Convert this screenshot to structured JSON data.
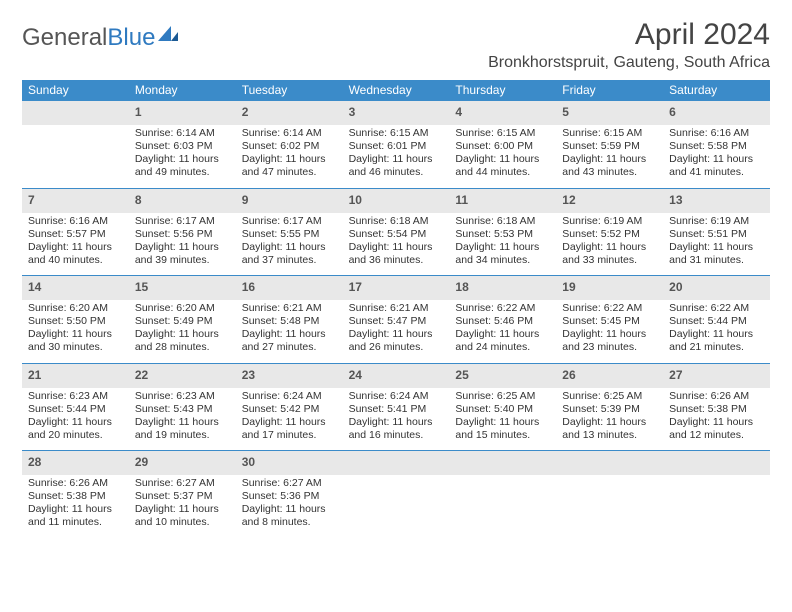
{
  "brand": {
    "part1": "General",
    "part2": "Blue"
  },
  "title": "April 2024",
  "location": "Bronkhorstspruit, Gauteng, South Africa",
  "colors": {
    "header_bg": "#3b8bc9",
    "header_text": "#ffffff",
    "daynum_bg": "#e8e8e8",
    "text": "#333333",
    "logo_gray": "#555555",
    "logo_blue": "#2f7ac0"
  },
  "weekdays": [
    "Sunday",
    "Monday",
    "Tuesday",
    "Wednesday",
    "Thursday",
    "Friday",
    "Saturday"
  ],
  "weeks": [
    [
      {
        "n": "",
        "sr": "",
        "ss": "",
        "dl": ""
      },
      {
        "n": "1",
        "sr": "6:14 AM",
        "ss": "6:03 PM",
        "dl": "11 hours and 49 minutes."
      },
      {
        "n": "2",
        "sr": "6:14 AM",
        "ss": "6:02 PM",
        "dl": "11 hours and 47 minutes."
      },
      {
        "n": "3",
        "sr": "6:15 AM",
        "ss": "6:01 PM",
        "dl": "11 hours and 46 minutes."
      },
      {
        "n": "4",
        "sr": "6:15 AM",
        "ss": "6:00 PM",
        "dl": "11 hours and 44 minutes."
      },
      {
        "n": "5",
        "sr": "6:15 AM",
        "ss": "5:59 PM",
        "dl": "11 hours and 43 minutes."
      },
      {
        "n": "6",
        "sr": "6:16 AM",
        "ss": "5:58 PM",
        "dl": "11 hours and 41 minutes."
      }
    ],
    [
      {
        "n": "7",
        "sr": "6:16 AM",
        "ss": "5:57 PM",
        "dl": "11 hours and 40 minutes."
      },
      {
        "n": "8",
        "sr": "6:17 AM",
        "ss": "5:56 PM",
        "dl": "11 hours and 39 minutes."
      },
      {
        "n": "9",
        "sr": "6:17 AM",
        "ss": "5:55 PM",
        "dl": "11 hours and 37 minutes."
      },
      {
        "n": "10",
        "sr": "6:18 AM",
        "ss": "5:54 PM",
        "dl": "11 hours and 36 minutes."
      },
      {
        "n": "11",
        "sr": "6:18 AM",
        "ss": "5:53 PM",
        "dl": "11 hours and 34 minutes."
      },
      {
        "n": "12",
        "sr": "6:19 AM",
        "ss": "5:52 PM",
        "dl": "11 hours and 33 minutes."
      },
      {
        "n": "13",
        "sr": "6:19 AM",
        "ss": "5:51 PM",
        "dl": "11 hours and 31 minutes."
      }
    ],
    [
      {
        "n": "14",
        "sr": "6:20 AM",
        "ss": "5:50 PM",
        "dl": "11 hours and 30 minutes."
      },
      {
        "n": "15",
        "sr": "6:20 AM",
        "ss": "5:49 PM",
        "dl": "11 hours and 28 minutes."
      },
      {
        "n": "16",
        "sr": "6:21 AM",
        "ss": "5:48 PM",
        "dl": "11 hours and 27 minutes."
      },
      {
        "n": "17",
        "sr": "6:21 AM",
        "ss": "5:47 PM",
        "dl": "11 hours and 26 minutes."
      },
      {
        "n": "18",
        "sr": "6:22 AM",
        "ss": "5:46 PM",
        "dl": "11 hours and 24 minutes."
      },
      {
        "n": "19",
        "sr": "6:22 AM",
        "ss": "5:45 PM",
        "dl": "11 hours and 23 minutes."
      },
      {
        "n": "20",
        "sr": "6:22 AM",
        "ss": "5:44 PM",
        "dl": "11 hours and 21 minutes."
      }
    ],
    [
      {
        "n": "21",
        "sr": "6:23 AM",
        "ss": "5:44 PM",
        "dl": "11 hours and 20 minutes."
      },
      {
        "n": "22",
        "sr": "6:23 AM",
        "ss": "5:43 PM",
        "dl": "11 hours and 19 minutes."
      },
      {
        "n": "23",
        "sr": "6:24 AM",
        "ss": "5:42 PM",
        "dl": "11 hours and 17 minutes."
      },
      {
        "n": "24",
        "sr": "6:24 AM",
        "ss": "5:41 PM",
        "dl": "11 hours and 16 minutes."
      },
      {
        "n": "25",
        "sr": "6:25 AM",
        "ss": "5:40 PM",
        "dl": "11 hours and 15 minutes."
      },
      {
        "n": "26",
        "sr": "6:25 AM",
        "ss": "5:39 PM",
        "dl": "11 hours and 13 minutes."
      },
      {
        "n": "27",
        "sr": "6:26 AM",
        "ss": "5:38 PM",
        "dl": "11 hours and 12 minutes."
      }
    ],
    [
      {
        "n": "28",
        "sr": "6:26 AM",
        "ss": "5:38 PM",
        "dl": "11 hours and 11 minutes."
      },
      {
        "n": "29",
        "sr": "6:27 AM",
        "ss": "5:37 PM",
        "dl": "11 hours and 10 minutes."
      },
      {
        "n": "30",
        "sr": "6:27 AM",
        "ss": "5:36 PM",
        "dl": "11 hours and 8 minutes."
      },
      {
        "n": "",
        "sr": "",
        "ss": "",
        "dl": ""
      },
      {
        "n": "",
        "sr": "",
        "ss": "",
        "dl": ""
      },
      {
        "n": "",
        "sr": "",
        "ss": "",
        "dl": ""
      },
      {
        "n": "",
        "sr": "",
        "ss": "",
        "dl": ""
      }
    ]
  ],
  "labels": {
    "sunrise": "Sunrise: ",
    "sunset": "Sunset: ",
    "daylight": "Daylight: "
  }
}
